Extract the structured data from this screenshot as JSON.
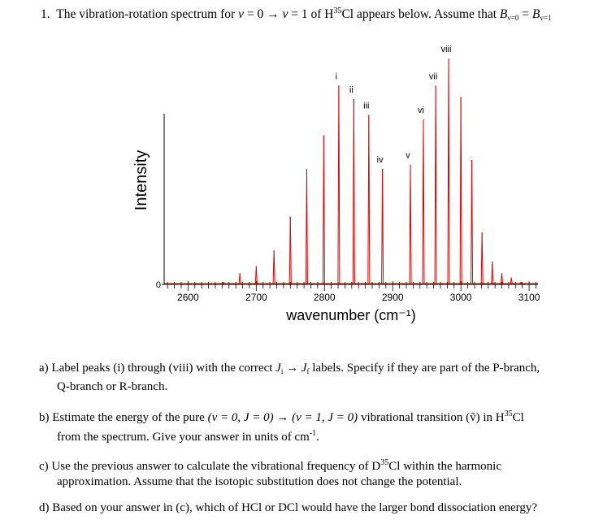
{
  "question": {
    "number": "1.",
    "text_before": "The vibration-rotation spectrum for",
    "v_lower": "v",
    "eq_lower": "= 0 →",
    "v_upper": "v",
    "eq_upper": "= 1 of H",
    "isotope_sup": "35",
    "molecule_rest": "Cl appears below.  Assume that",
    "B_lower": "B",
    "B_lower_sub": "v=0",
    "equals": "=",
    "B_upper": "B",
    "B_upper_sub": "v=1"
  },
  "chart_data": {
    "type": "line",
    "xlabel": "wavenumber (cm⁻¹)",
    "ylabel": "Intensity",
    "x_ticks": [
      2600,
      2700,
      2800,
      2900,
      3000,
      3100
    ],
    "x_tick_labels": [
      "2600",
      "2700",
      "2800",
      "2900",
      "3000",
      "3100"
    ],
    "y_tick_labels": [
      "0"
    ],
    "xlim": [
      2565,
      3113
    ],
    "ylim": [
      0,
      1
    ],
    "line_color": "#e00000",
    "peak_labels": [
      "i",
      "ii",
      "iii",
      "iv",
      "v",
      "vi",
      "vii",
      "viii"
    ],
    "peaks": [
      {
        "x": 2652,
        "y": 0.01
      },
      {
        "x": 2676,
        "y": 0.05
      },
      {
        "x": 2700,
        "y": 0.08
      },
      {
        "x": 2726,
        "y": 0.15
      },
      {
        "x": 2750,
        "y": 0.3
      },
      {
        "x": 2774,
        "y": 0.51
      },
      {
        "x": 2799,
        "y": 0.66
      },
      {
        "x": 2821,
        "y": 0.88,
        "label": "i"
      },
      {
        "x": 2843,
        "y": 0.82,
        "label": "ii"
      },
      {
        "x": 2865,
        "y": 0.75,
        "label": "iii"
      },
      {
        "x": 2885,
        "y": 0.51,
        "label": "iv"
      },
      {
        "x": 2926,
        "y": 0.53,
        "label": "v"
      },
      {
        "x": 2945,
        "y": 0.73,
        "label": "vi"
      },
      {
        "x": 2963,
        "y": 0.88,
        "label": "vii"
      },
      {
        "x": 2982,
        "y": 1.0,
        "label": "viii"
      },
      {
        "x": 3000,
        "y": 0.83
      },
      {
        "x": 3016,
        "y": 0.55
      },
      {
        "x": 3031,
        "y": 0.23
      },
      {
        "x": 3046,
        "y": 0.1
      },
      {
        "x": 3060,
        "y": 0.05
      },
      {
        "x": 3074,
        "y": 0.03
      },
      {
        "x": 3088,
        "y": 0.01
      }
    ]
  },
  "parts": {
    "a": {
      "label": "a)",
      "text1": "Label peaks (i) through (viii) with the correct",
      "Ji": "J",
      "Ji_sub": "i",
      "arrow": "→",
      "Jf": "J",
      "Jf_sub": "f",
      "text2": "labels.  Specify if they are part of the P-branch,",
      "text3": "Q-branch or R-branch."
    },
    "b": {
      "label": "b)",
      "text1": "Estimate the energy of the pure",
      "transition": "(v = 0, J = 0) → (v = 1, J = 0)",
      "text2": "vibrational transition",
      "symbol": "(ṽ)",
      "text3": "in H",
      "isotope_sup": "35",
      "text4": "Cl",
      "text5": "from the spectrum. Give your answer in units of cm",
      "unit_sup": "-1",
      "text6": "."
    },
    "c": {
      "label": "c)",
      "text1": "Use the previous answer to calculate the vibrational frequency of D",
      "isotope_sup": "35",
      "text2": "Cl within the harmonic",
      "text3": "approximation.  Assume that the isotopic substitution does not change the potential."
    },
    "d": {
      "label": "d)",
      "text1": "Based on your answer in (c), which of HCl or DCl would have the larger bond dissociation energy?"
    }
  }
}
